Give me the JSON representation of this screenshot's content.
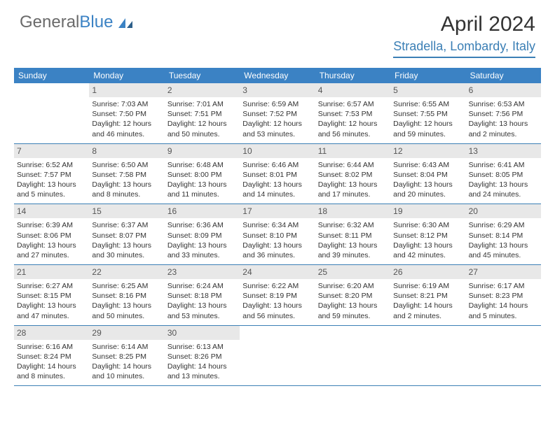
{
  "logo": {
    "text_main": "General",
    "text_accent": "Blue",
    "accent_color": "#3b82c4",
    "main_color": "#6a6a6a"
  },
  "header": {
    "month": "April 2024",
    "location": "Stradella, Lombardy, Italy"
  },
  "colors": {
    "header_bg": "#3b82c4",
    "daynum_bg": "#e8e8e8",
    "border": "#3b7fb5",
    "text": "#333333",
    "bg": "#ffffff"
  },
  "weekdays": [
    "Sunday",
    "Monday",
    "Tuesday",
    "Wednesday",
    "Thursday",
    "Friday",
    "Saturday"
  ],
  "weeks": [
    [
      {
        "empty": true
      },
      {
        "n": "1",
        "sunrise": "Sunrise: 7:03 AM",
        "sunset": "Sunset: 7:50 PM",
        "day1": "Daylight: 12 hours",
        "day2": "and 46 minutes."
      },
      {
        "n": "2",
        "sunrise": "Sunrise: 7:01 AM",
        "sunset": "Sunset: 7:51 PM",
        "day1": "Daylight: 12 hours",
        "day2": "and 50 minutes."
      },
      {
        "n": "3",
        "sunrise": "Sunrise: 6:59 AM",
        "sunset": "Sunset: 7:52 PM",
        "day1": "Daylight: 12 hours",
        "day2": "and 53 minutes."
      },
      {
        "n": "4",
        "sunrise": "Sunrise: 6:57 AM",
        "sunset": "Sunset: 7:53 PM",
        "day1": "Daylight: 12 hours",
        "day2": "and 56 minutes."
      },
      {
        "n": "5",
        "sunrise": "Sunrise: 6:55 AM",
        "sunset": "Sunset: 7:55 PM",
        "day1": "Daylight: 12 hours",
        "day2": "and 59 minutes."
      },
      {
        "n": "6",
        "sunrise": "Sunrise: 6:53 AM",
        "sunset": "Sunset: 7:56 PM",
        "day1": "Daylight: 13 hours",
        "day2": "and 2 minutes."
      }
    ],
    [
      {
        "n": "7",
        "sunrise": "Sunrise: 6:52 AM",
        "sunset": "Sunset: 7:57 PM",
        "day1": "Daylight: 13 hours",
        "day2": "and 5 minutes."
      },
      {
        "n": "8",
        "sunrise": "Sunrise: 6:50 AM",
        "sunset": "Sunset: 7:58 PM",
        "day1": "Daylight: 13 hours",
        "day2": "and 8 minutes."
      },
      {
        "n": "9",
        "sunrise": "Sunrise: 6:48 AM",
        "sunset": "Sunset: 8:00 PM",
        "day1": "Daylight: 13 hours",
        "day2": "and 11 minutes."
      },
      {
        "n": "10",
        "sunrise": "Sunrise: 6:46 AM",
        "sunset": "Sunset: 8:01 PM",
        "day1": "Daylight: 13 hours",
        "day2": "and 14 minutes."
      },
      {
        "n": "11",
        "sunrise": "Sunrise: 6:44 AM",
        "sunset": "Sunset: 8:02 PM",
        "day1": "Daylight: 13 hours",
        "day2": "and 17 minutes."
      },
      {
        "n": "12",
        "sunrise": "Sunrise: 6:43 AM",
        "sunset": "Sunset: 8:04 PM",
        "day1": "Daylight: 13 hours",
        "day2": "and 20 minutes."
      },
      {
        "n": "13",
        "sunrise": "Sunrise: 6:41 AM",
        "sunset": "Sunset: 8:05 PM",
        "day1": "Daylight: 13 hours",
        "day2": "and 24 minutes."
      }
    ],
    [
      {
        "n": "14",
        "sunrise": "Sunrise: 6:39 AM",
        "sunset": "Sunset: 8:06 PM",
        "day1": "Daylight: 13 hours",
        "day2": "and 27 minutes."
      },
      {
        "n": "15",
        "sunrise": "Sunrise: 6:37 AM",
        "sunset": "Sunset: 8:07 PM",
        "day1": "Daylight: 13 hours",
        "day2": "and 30 minutes."
      },
      {
        "n": "16",
        "sunrise": "Sunrise: 6:36 AM",
        "sunset": "Sunset: 8:09 PM",
        "day1": "Daylight: 13 hours",
        "day2": "and 33 minutes."
      },
      {
        "n": "17",
        "sunrise": "Sunrise: 6:34 AM",
        "sunset": "Sunset: 8:10 PM",
        "day1": "Daylight: 13 hours",
        "day2": "and 36 minutes."
      },
      {
        "n": "18",
        "sunrise": "Sunrise: 6:32 AM",
        "sunset": "Sunset: 8:11 PM",
        "day1": "Daylight: 13 hours",
        "day2": "and 39 minutes."
      },
      {
        "n": "19",
        "sunrise": "Sunrise: 6:30 AM",
        "sunset": "Sunset: 8:12 PM",
        "day1": "Daylight: 13 hours",
        "day2": "and 42 minutes."
      },
      {
        "n": "20",
        "sunrise": "Sunrise: 6:29 AM",
        "sunset": "Sunset: 8:14 PM",
        "day1": "Daylight: 13 hours",
        "day2": "and 45 minutes."
      }
    ],
    [
      {
        "n": "21",
        "sunrise": "Sunrise: 6:27 AM",
        "sunset": "Sunset: 8:15 PM",
        "day1": "Daylight: 13 hours",
        "day2": "and 47 minutes."
      },
      {
        "n": "22",
        "sunrise": "Sunrise: 6:25 AM",
        "sunset": "Sunset: 8:16 PM",
        "day1": "Daylight: 13 hours",
        "day2": "and 50 minutes."
      },
      {
        "n": "23",
        "sunrise": "Sunrise: 6:24 AM",
        "sunset": "Sunset: 8:18 PM",
        "day1": "Daylight: 13 hours",
        "day2": "and 53 minutes."
      },
      {
        "n": "24",
        "sunrise": "Sunrise: 6:22 AM",
        "sunset": "Sunset: 8:19 PM",
        "day1": "Daylight: 13 hours",
        "day2": "and 56 minutes."
      },
      {
        "n": "25",
        "sunrise": "Sunrise: 6:20 AM",
        "sunset": "Sunset: 8:20 PM",
        "day1": "Daylight: 13 hours",
        "day2": "and 59 minutes."
      },
      {
        "n": "26",
        "sunrise": "Sunrise: 6:19 AM",
        "sunset": "Sunset: 8:21 PM",
        "day1": "Daylight: 14 hours",
        "day2": "and 2 minutes."
      },
      {
        "n": "27",
        "sunrise": "Sunrise: 6:17 AM",
        "sunset": "Sunset: 8:23 PM",
        "day1": "Daylight: 14 hours",
        "day2": "and 5 minutes."
      }
    ],
    [
      {
        "n": "28",
        "sunrise": "Sunrise: 6:16 AM",
        "sunset": "Sunset: 8:24 PM",
        "day1": "Daylight: 14 hours",
        "day2": "and 8 minutes."
      },
      {
        "n": "29",
        "sunrise": "Sunrise: 6:14 AM",
        "sunset": "Sunset: 8:25 PM",
        "day1": "Daylight: 14 hours",
        "day2": "and 10 minutes."
      },
      {
        "n": "30",
        "sunrise": "Sunrise: 6:13 AM",
        "sunset": "Sunset: 8:26 PM",
        "day1": "Daylight: 14 hours",
        "day2": "and 13 minutes."
      },
      {
        "empty": true
      },
      {
        "empty": true
      },
      {
        "empty": true
      },
      {
        "empty": true
      }
    ]
  ]
}
